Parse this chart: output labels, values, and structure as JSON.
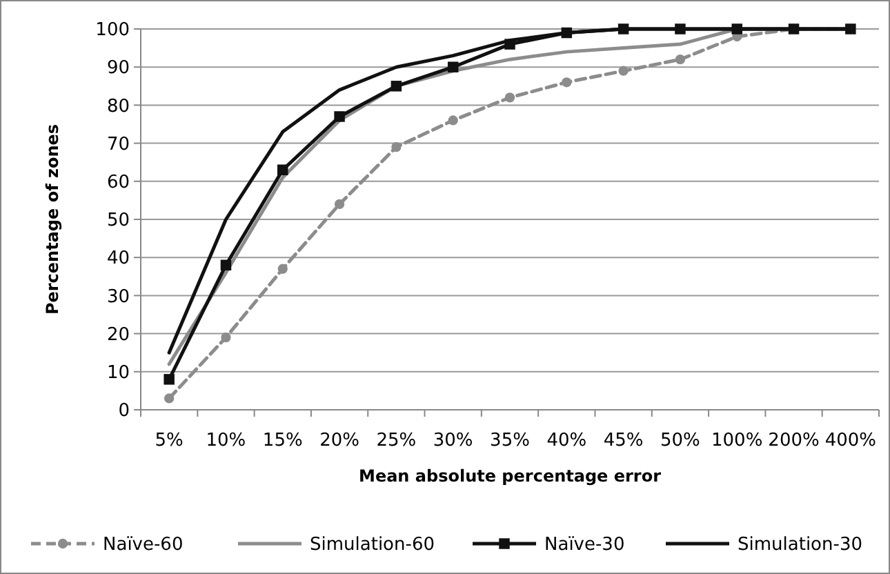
{
  "chart_data": {
    "type": "line",
    "xlabel": "Mean absolute percentage error",
    "ylabel": "Percentage of zones",
    "categories": [
      "5%",
      "10%",
      "15%",
      "20%",
      "25%",
      "30%",
      "35%",
      "40%",
      "45%",
      "50%",
      "100%",
      "200%",
      "400%"
    ],
    "ylim": [
      0,
      100
    ],
    "yticks": [
      0,
      10,
      20,
      30,
      40,
      50,
      60,
      70,
      80,
      90,
      100
    ],
    "grid": "y",
    "legend": "bottom",
    "series": [
      {
        "name": "Naïve-60",
        "color": "#8c8c8c",
        "line_style": "dashed",
        "marker": "circle",
        "values": [
          3,
          19,
          37,
          54,
          69,
          76,
          82,
          86,
          89,
          92,
          98,
          100,
          100
        ]
      },
      {
        "name": "Simulation-60",
        "color": "#8c8c8c",
        "line_style": "solid",
        "marker": "none",
        "values": [
          12,
          36,
          61,
          76,
          85,
          89,
          92,
          94,
          95,
          96,
          100,
          100,
          100
        ]
      },
      {
        "name": "Naïve-30",
        "color": "#111111",
        "line_style": "solid",
        "marker": "square",
        "values": [
          8,
          38,
          63,
          77,
          85,
          90,
          96,
          99,
          100,
          100,
          100,
          100,
          100
        ]
      },
      {
        "name": "Simulation-30",
        "color": "#111111",
        "line_style": "solid",
        "marker": "none",
        "values": [
          15,
          50,
          73,
          84,
          90,
          93,
          97,
          99,
          100,
          100,
          100,
          100,
          100
        ]
      }
    ]
  }
}
